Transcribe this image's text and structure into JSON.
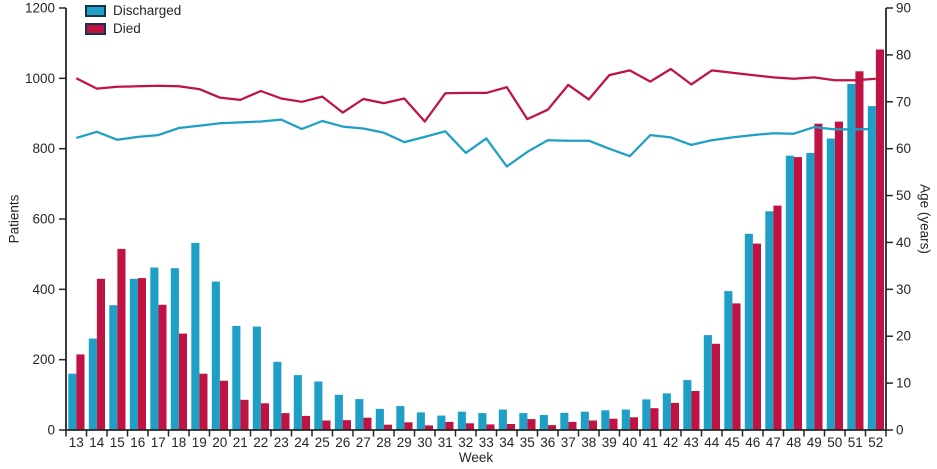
{
  "chart_data": {
    "type": "combo-bar-line",
    "title": "",
    "categories": [
      "13",
      "14",
      "15",
      "16",
      "17",
      "18",
      "19",
      "20",
      "21",
      "22",
      "23",
      "24",
      "25",
      "26",
      "27",
      "28",
      "29",
      "30",
      "31",
      "32",
      "33",
      "34",
      "35",
      "36",
      "37",
      "38",
      "39",
      "40",
      "41",
      "42",
      "43",
      "44",
      "45",
      "46",
      "47",
      "48",
      "49",
      "50",
      "51",
      "52"
    ],
    "bar_series": [
      {
        "name": "Discharged",
        "axis": "left",
        "color": "#1EA0C6",
        "values": [
          160,
          260,
          355,
          430,
          462,
          460,
          532,
          422,
          296,
          294,
          194,
          156,
          138,
          100,
          88,
          60,
          68,
          50,
          41,
          52,
          48,
          58,
          48,
          43,
          49,
          52,
          56,
          58,
          87,
          104,
          142,
          270,
          395,
          558,
          622,
          780,
          788,
          829,
          984,
          921
        ]
      },
      {
        "name": "Died",
        "axis": "left",
        "color": "#C01243",
        "values": [
          215,
          430,
          515,
          432,
          356,
          274,
          160,
          140,
          86,
          76,
          48,
          40,
          27,
          28,
          35,
          15,
          22,
          13,
          23,
          19,
          16,
          17,
          31,
          14,
          23,
          27,
          32,
          36,
          62,
          77,
          111,
          245,
          360,
          530,
          638,
          776,
          871,
          877,
          1020,
          1082
        ]
      }
    ],
    "line_series": [
      {
        "name": "Died",
        "axis": "right",
        "color": "#C01243",
        "values": [
          75.0,
          72.8,
          73.2,
          73.3,
          73.4,
          73.3,
          72.7,
          70.9,
          70.4,
          72.3,
          70.7,
          70.0,
          71.1,
          67.7,
          70.6,
          69.7,
          70.7,
          65.8,
          71.8,
          71.9,
          71.9,
          73.1,
          66.3,
          68.3,
          73.6,
          70.5,
          75.7,
          76.7,
          74.3,
          77.0,
          73.7,
          76.7,
          76.2,
          75.7,
          75.2,
          74.9,
          75.2,
          74.6,
          74.6,
          74.9
        ]
      },
      {
        "name": "Discharged",
        "axis": "right",
        "color": "#1EA0C6",
        "values": [
          62.3,
          63.6,
          61.9,
          62.5,
          62.9,
          64.4,
          64.9,
          65.4,
          65.6,
          65.8,
          66.2,
          64.2,
          65.9,
          64.7,
          64.3,
          63.4,
          61.4,
          62.5,
          63.7,
          59.1,
          62.2,
          56.2,
          59.3,
          61.8,
          61.7,
          61.7,
          60.0,
          58.4,
          62.9,
          62.4,
          60.8,
          61.8,
          62.4,
          62.9,
          63.3,
          63.2,
          64.6,
          64.1,
          64.1,
          64.2
        ]
      }
    ],
    "left_axis": {
      "label": "Patients",
      "min": 0,
      "max": 1200,
      "ticks": [
        0,
        200,
        400,
        600,
        800,
        1000,
        1200
      ]
    },
    "right_axis": {
      "label": "Age (years)",
      "min": 0,
      "max": 90,
      "ticks": [
        0,
        10,
        20,
        30,
        40,
        50,
        60,
        70,
        80,
        90
      ]
    },
    "x_axis": {
      "label": "Week"
    },
    "legend": [
      {
        "label": "Discharged",
        "color": "#1EA0C6"
      },
      {
        "label": "Died",
        "color": "#C01243"
      }
    ],
    "layout": {
      "legend_position": "top-left-inside",
      "grid": false
    },
    "colors": {
      "axis": "#262626",
      "swatch_border": "#14334E",
      "background": "#FFFFFF"
    }
  }
}
